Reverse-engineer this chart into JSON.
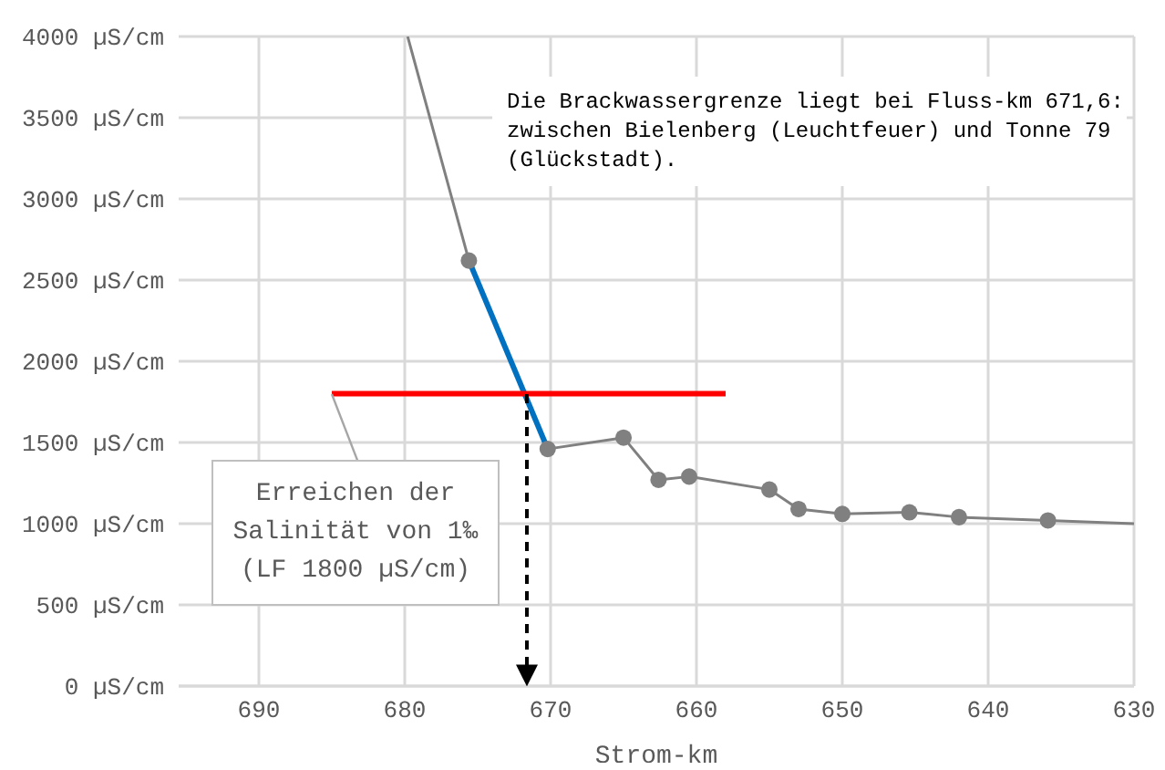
{
  "chart_data": {
    "type": "line",
    "xlabel": "Strom-km",
    "xlim": [
      695.5,
      630
    ],
    "xticks": [
      690,
      680,
      670,
      660,
      650,
      640,
      630
    ],
    "ylim": [
      0,
      4000
    ],
    "yticks": [
      {
        "value": 0,
        "label": "0 µS/cm"
      },
      {
        "value": 500,
        "label": "500 µS/cm"
      },
      {
        "value": 1000,
        "label": "1000 µS/cm"
      },
      {
        "value": 1500,
        "label": "1500 µS/cm"
      },
      {
        "value": 2000,
        "label": "2000 µS/cm"
      },
      {
        "value": 2500,
        "label": "2500 µS/cm"
      },
      {
        "value": 3000,
        "label": "3000 µS/cm"
      },
      {
        "value": 3500,
        "label": "3500 µS/cm"
      },
      {
        "value": 4000,
        "label": "4000 µS/cm"
      }
    ],
    "grid": true,
    "ref_lines": [
      {
        "axis": "x",
        "value": 671.6,
        "color": "#000000",
        "line_style": "dashed"
      }
    ],
    "series": [
      {
        "color": "#808080",
        "marker": "none",
        "x": [
          679.8,
          675.6,
          670.2,
          665.0,
          662.6,
          660.5,
          655.0,
          653.0,
          650.0,
          645.4,
          642.0,
          635.9,
          630
        ],
        "values": [
          4000,
          2620,
          1460,
          1530,
          1270,
          1290,
          1210,
          1090,
          1060,
          1070,
          1040,
          1020,
          1000
        ]
      },
      {
        "type": "scatter",
        "color": "#808080",
        "marker": "circle",
        "x": [
          675.6,
          670.2,
          665.0,
          662.6,
          660.5,
          655.0,
          653.0,
          650.0,
          645.4,
          642.0,
          635.9
        ],
        "values": [
          2620,
          1460,
          1530,
          1270,
          1290,
          1210,
          1090,
          1060,
          1070,
          1040,
          1020
        ]
      },
      {
        "color": "#0070c0",
        "marker": "none",
        "x": [
          675.6,
          670.2
        ],
        "values": [
          2620,
          1460
        ]
      },
      {
        "color": "#ff0000",
        "marker": "none",
        "x": [
          685,
          658
        ],
        "values": [
          1800,
          1800
        ]
      }
    ],
    "annotations": [
      "Die Brackwassergrenze liegt bei Fluss-km 671,6:\nzwischen Bielenberg (Leuchtfeuer) und Tonne 79\n(Glückstadt).",
      {
        "text": "Erreichen der\nSalinität von 1‰\n(LF 1800 µS/cm)",
        "x": 685,
        "y": 1800
      }
    ]
  }
}
